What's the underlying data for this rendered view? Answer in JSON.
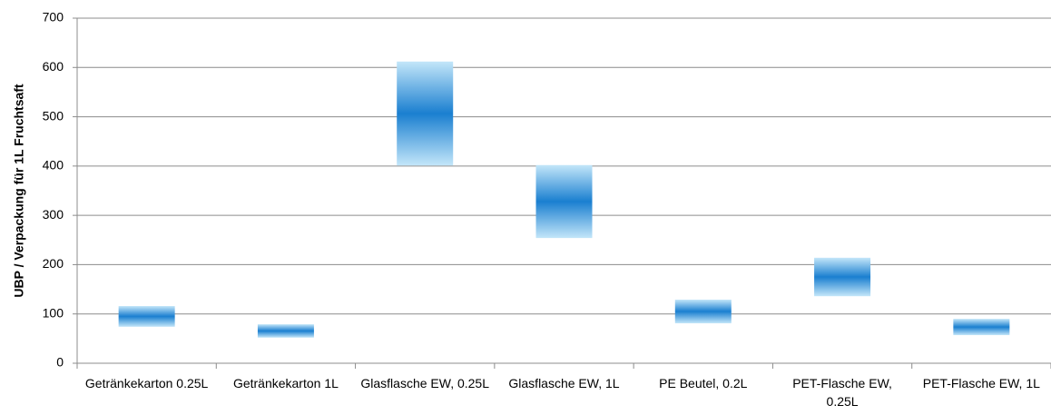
{
  "chart_data": {
    "type": "range-bar",
    "y_label": "UBP / Verpackung für 1L Fruchtsaft",
    "categories": [
      "Getränkekarton 0.25L",
      "Getränkekarton 1L",
      "Glasflasche EW, 0.25L",
      "Glasflasche EW, 1L",
      "PE Beutel, 0.2L",
      "PET-Flasche EW, 0.25L",
      "PET-Flasche EW, 1L"
    ],
    "low": [
      74,
      52,
      401,
      254,
      81,
      136,
      57
    ],
    "high": [
      116,
      79,
      612,
      402,
      129,
      214,
      90
    ],
    "color": "#1a7fd0",
    "edge_color": "#c3e6f9",
    "ylim": [
      0,
      700
    ],
    "yticks": [
      0,
      100,
      200,
      300,
      400,
      500,
      600,
      700
    ],
    "grid": true
  }
}
